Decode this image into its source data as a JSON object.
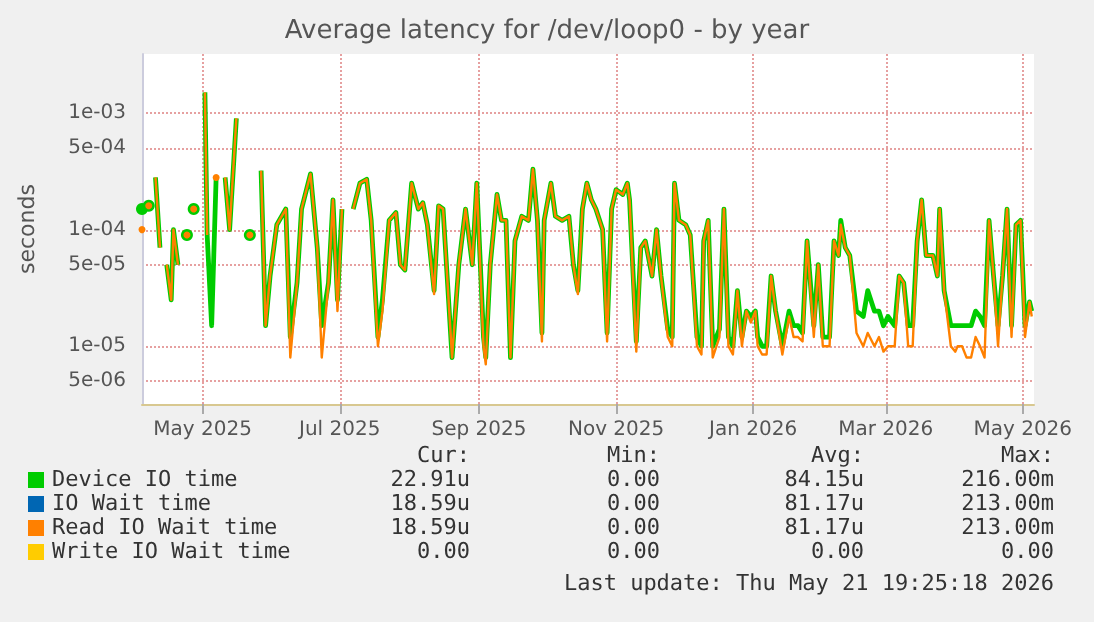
{
  "chart_data": {
    "type": "line",
    "title": "Average latency for /dev/loop0 - by year",
    "ylabel": "seconds",
    "log": "y",
    "grid": true,
    "legend": "bottom",
    "marker": "none",
    "line_style": "solid",
    "xlim": [
      "2025-04-04",
      "2026-05-06"
    ],
    "xticks": [
      {
        "value": "2025-05-01",
        "label": "May 2025"
      },
      {
        "value": "2025-07-01",
        "label": "Jul 2025"
      },
      {
        "value": "2025-09-01",
        "label": "Sep 2025"
      },
      {
        "value": "2025-11-01",
        "label": "Nov 2025"
      },
      {
        "value": "2026-01-01",
        "label": "Jan 2026"
      },
      {
        "value": "2026-03-01",
        "label": "Mar 2026"
      },
      {
        "value": "2026-05-01",
        "label": "May 2026"
      }
    ],
    "ylim": [
      3.2e-06,
      0.0032
    ],
    "yticks": [
      {
        "value": 5e-06,
        "label": "5e-06"
      },
      {
        "value": 1e-05,
        "label": "1e-05"
      },
      {
        "value": 5e-05,
        "label": "5e-05"
      },
      {
        "value": 0.0001,
        "label": "1e-04"
      },
      {
        "value": 0.0005,
        "label": "5e-04"
      },
      {
        "value": 0.001,
        "label": "1e-03"
      }
    ],
    "x": [
      "2025-04-04",
      "2025-04-05",
      "2025-04-07",
      "2025-04-09",
      "2025-04-10",
      "2025-04-12",
      "2025-04-14",
      "2025-04-15",
      "2025-04-17",
      "2025-04-18",
      "2025-04-20",
      "2025-04-21",
      "2025-04-24",
      "2025-04-26",
      "2025-04-27",
      "2025-04-29",
      "2025-05-02",
      "2025-05-03",
      "2025-05-05",
      "2025-05-07",
      "2025-05-10",
      "2025-05-11",
      "2025-05-13",
      "2025-05-16",
      "2025-05-18",
      "2025-05-20",
      "2025-05-22",
      "2025-05-24",
      "2025-05-27",
      "2025-05-29",
      "2025-05-31",
      "2025-06-03",
      "2025-06-07",
      "2025-06-09",
      "2025-06-12",
      "2025-06-14",
      "2025-06-18",
      "2025-06-21",
      "2025-06-23",
      "2025-06-26",
      "2025-06-28",
      "2025-06-30",
      "2025-07-02",
      "2025-07-04",
      "2025-07-07",
      "2025-07-10",
      "2025-07-13",
      "2025-07-15",
      "2025-07-18",
      "2025-07-20",
      "2025-07-23",
      "2025-07-26",
      "2025-07-28",
      "2025-07-30",
      "2025-08-02",
      "2025-08-05",
      "2025-08-07",
      "2025-08-09",
      "2025-08-12",
      "2025-08-14",
      "2025-08-16",
      "2025-08-20",
      "2025-08-23",
      "2025-08-26",
      "2025-08-29",
      "2025-08-31",
      "2025-09-03",
      "2025-09-04",
      "2025-09-06",
      "2025-09-09",
      "2025-09-11",
      "2025-09-13",
      "2025-09-15",
      "2025-09-17",
      "2025-09-20",
      "2025-09-23",
      "2025-09-25",
      "2025-09-27",
      "2025-09-29",
      "2025-09-30",
      "2025-10-03",
      "2025-10-05",
      "2025-10-08",
      "2025-10-11",
      "2025-10-13",
      "2025-10-15",
      "2025-10-17",
      "2025-10-19",
      "2025-10-21",
      "2025-10-23",
      "2025-10-26",
      "2025-10-28",
      "2025-10-30",
      "2025-11-01",
      "2025-11-04",
      "2025-11-06",
      "2025-11-07",
      "2025-11-10",
      "2025-11-12",
      "2025-11-14",
      "2025-11-17",
      "2025-11-19",
      "2025-11-21",
      "2025-11-24",
      "2025-11-26",
      "2025-11-27",
      "2025-11-29",
      "2025-12-02",
      "2025-12-04",
      "2025-12-07",
      "2025-12-09",
      "2025-12-10",
      "2025-12-12",
      "2025-12-14",
      "2025-12-17",
      "2025-12-19",
      "2025-12-21",
      "2025-12-23",
      "2025-12-25",
      "2025-12-27",
      "2025-12-29",
      "2025-12-31",
      "2026-01-02",
      "2026-01-03",
      "2026-01-05",
      "2026-01-07",
      "2026-01-09",
      "2026-01-11",
      "2026-01-14",
      "2026-01-17",
      "2026-01-19",
      "2026-01-21",
      "2026-01-23",
      "2026-01-25",
      "2026-01-28",
      "2026-01-30",
      "2026-02-01",
      "2026-02-04",
      "2026-02-06",
      "2026-02-08",
      "2026-02-09",
      "2026-02-11",
      "2026-02-13",
      "2026-02-16",
      "2026-02-19",
      "2026-02-21",
      "2026-02-24",
      "2026-02-26",
      "2026-02-28",
      "2026-03-02",
      "2026-03-05",
      "2026-03-07",
      "2026-03-09",
      "2026-03-11",
      "2026-03-13",
      "2026-03-15",
      "2026-03-17",
      "2026-03-19",
      "2026-03-22",
      "2026-03-24",
      "2026-03-25",
      "2026-03-27",
      "2026-03-30",
      "2026-04-01",
      "2026-04-02",
      "2026-04-04",
      "2026-04-06",
      "2026-04-08",
      "2026-04-10",
      "2026-04-12",
      "2026-04-14",
      "2026-04-16",
      "2026-04-18",
      "2026-04-20",
      "2026-04-22",
      "2026-04-24",
      "2026-04-26",
      "2026-04-28",
      "2026-04-30",
      "2026-05-02",
      "2026-05-04",
      "2026-05-05"
    ],
    "series": [
      {
        "name": "Device IO time",
        "color": "#00cc00",
        "values": [
          0.00015,
          null,
          0.00016,
          null,
          0.00028,
          7e-05,
          null,
          5e-05,
          2.5e-05,
          0.0001,
          5e-05,
          null,
          9e-05,
          null,
          0.00015,
          null,
          0.0015,
          9e-05,
          1.5e-05,
          0.00028,
          null,
          0.00028,
          0.0001,
          0.0009,
          null,
          null,
          9e-05,
          null,
          0.00032,
          1.5e-05,
          4e-05,
          0.00011,
          0.00015,
          1.2e-05,
          3.5e-05,
          0.00015,
          0.0003,
          7e-05,
          1.5e-05,
          3.5e-05,
          0.00018,
          2.5e-05,
          0.00015,
          null,
          0.00015,
          0.00025,
          0.00027,
          0.00012,
          1.2e-05,
          2.5e-05,
          0.00012,
          0.00014,
          5e-05,
          4.5e-05,
          0.00025,
          0.00015,
          0.00017,
          0.00011,
          3e-05,
          0.00016,
          0.00015,
          8e-06,
          5e-05,
          0.00015,
          5e-05,
          0.00025,
          1.2e-05,
          8e-06,
          5e-05,
          0.0002,
          0.00012,
          0.00012,
          8e-06,
          8e-05,
          0.00013,
          0.00012,
          0.00033,
          0.00012,
          1.3e-05,
          0.00012,
          0.00025,
          0.00013,
          0.00012,
          0.00013,
          5e-05,
          3e-05,
          0.00015,
          0.00025,
          0.00018,
          0.00015,
          0.0001,
          1.3e-05,
          0.00015,
          0.00022,
          0.0002,
          0.00025,
          0.00018,
          1.1e-05,
          7e-05,
          8e-05,
          4e-05,
          0.0001,
          4e-05,
          1.4e-05,
          1.2e-05,
          0.00025,
          0.00012,
          0.00011,
          9e-05,
          1.2e-05,
          1e-05,
          8e-05,
          0.00012,
          1e-05,
          1.4e-05,
          0.00015,
          1.2e-05,
          1e-05,
          3e-05,
          1.2e-05,
          2e-05,
          1.8e-05,
          2e-05,
          1.2e-05,
          1e-05,
          1e-05,
          4e-05,
          2e-05,
          1e-05,
          2e-05,
          1.5e-05,
          1.5e-05,
          1.3e-05,
          8e-05,
          1.5e-05,
          5e-05,
          1.2e-05,
          1.2e-05,
          8e-05,
          6e-05,
          0.00012,
          7e-05,
          6e-05,
          2e-05,
          1.8e-05,
          3e-05,
          2e-05,
          2e-05,
          1.5e-05,
          1.8e-05,
          1.5e-05,
          4e-05,
          3.5e-05,
          1.5e-05,
          1.5e-05,
          8e-05,
          0.00018,
          6e-05,
          6e-05,
          4e-05,
          0.00015,
          3e-05,
          1.5e-05,
          1.5e-05,
          1.5e-05,
          1.5e-05,
          1.5e-05,
          1.5e-05,
          2e-05,
          1.8e-05,
          1.5e-05,
          0.00012,
          4e-05,
          1.5e-05,
          4e-05,
          0.00015,
          1.5e-05,
          0.00011,
          0.00012,
          1.5e-05,
          2.4e-05,
          2e-05
        ]
      },
      {
        "name": "IO Wait time",
        "color": "#0066b3",
        "values": [
          null,
          null,
          null,
          null,
          null,
          null,
          null,
          null,
          null,
          null,
          null,
          null,
          null,
          null,
          null,
          null,
          null,
          null,
          null,
          null,
          null,
          null,
          null,
          null,
          null,
          null,
          null,
          null,
          null,
          null,
          null,
          null,
          null,
          null,
          null,
          null,
          null,
          null,
          null,
          null,
          null,
          null,
          null,
          null,
          null,
          null,
          null,
          null,
          null,
          null,
          null,
          null,
          null,
          null,
          null,
          null,
          null,
          null,
          null,
          null,
          null,
          null,
          null,
          null,
          null,
          null,
          null,
          null,
          null,
          null,
          null,
          null,
          null,
          null,
          null,
          null,
          null,
          null,
          null,
          null,
          null,
          null,
          null,
          null,
          null,
          null,
          null,
          null,
          null,
          null,
          null,
          null,
          null,
          null,
          null,
          null,
          null,
          null,
          null,
          null,
          null,
          null,
          null,
          null,
          null,
          null,
          null,
          null,
          null,
          null,
          null,
          null,
          null,
          null,
          null,
          null,
          null,
          null,
          null,
          null,
          null,
          null,
          null,
          null,
          null,
          null,
          null,
          null,
          null,
          null,
          null,
          null,
          null,
          null,
          null,
          null,
          null,
          null,
          null,
          null,
          null,
          null,
          null,
          null,
          null,
          null,
          null,
          null,
          null,
          null,
          null,
          null,
          null,
          null,
          null,
          null,
          null,
          null,
          null,
          null,
          null,
          null,
          null,
          null,
          null,
          null,
          null,
          null,
          null,
          null,
          null,
          null,
          null,
          null,
          null,
          null,
          null,
          null,
          null,
          null,
          null,
          null
        ]
      },
      {
        "name": "Read IO Wait time",
        "color": "#ff8000",
        "values": [
          0.0001,
          null,
          0.00016,
          null,
          0.00028,
          7e-05,
          null,
          5e-05,
          2.5e-05,
          0.0001,
          5e-05,
          null,
          9e-05,
          null,
          0.00015,
          null,
          0.0015,
          9e-05,
          null,
          0.00028,
          null,
          0.00028,
          0.0001,
          0.0009,
          null,
          null,
          9e-05,
          null,
          0.00032,
          1.5e-05,
          4e-05,
          0.00011,
          0.00015,
          8e-06,
          3.5e-05,
          0.00015,
          0.0003,
          7e-05,
          8e-06,
          3.5e-05,
          0.00018,
          2e-05,
          0.00015,
          null,
          0.00015,
          0.00025,
          0.00027,
          0.00012,
          1e-05,
          2e-05,
          0.00012,
          0.00014,
          5e-05,
          4.5e-05,
          0.00025,
          0.00015,
          0.00017,
          0.00011,
          2.8e-05,
          0.00016,
          0.00015,
          8e-06,
          5e-05,
          0.00015,
          5e-05,
          0.00025,
          1e-05,
          7e-06,
          5e-05,
          0.0002,
          0.00012,
          0.00012,
          8e-06,
          8e-05,
          0.00013,
          0.00012,
          0.00033,
          0.00012,
          1.1e-05,
          0.00012,
          0.00025,
          0.00013,
          0.00012,
          0.00013,
          5e-05,
          2.8e-05,
          0.00015,
          0.00025,
          0.00018,
          0.00015,
          0.0001,
          1.1e-05,
          0.00015,
          0.00022,
          0.0002,
          0.00025,
          0.00018,
          9e-06,
          7e-05,
          8e-05,
          4e-05,
          0.0001,
          4e-05,
          1.2e-05,
          1e-05,
          0.00025,
          0.00012,
          0.00011,
          9e-05,
          1e-05,
          8.5e-06,
          8e-05,
          0.00012,
          8e-06,
          1.2e-05,
          0.00015,
          1e-05,
          8.5e-06,
          3e-05,
          1e-05,
          2e-05,
          1.6e-05,
          2e-05,
          1e-05,
          8.5e-06,
          8.5e-06,
          4e-05,
          2e-05,
          8.5e-06,
          1.8e-05,
          1.2e-05,
          1.2e-05,
          1.1e-05,
          8e-05,
          1.2e-05,
          5e-05,
          1e-05,
          1e-05,
          8e-05,
          6e-05,
          0.00011,
          7e-05,
          6e-05,
          1.3e-05,
          1e-05,
          1.3e-05,
          1e-05,
          1.2e-05,
          9e-06,
          1e-05,
          1e-05,
          4e-05,
          3.5e-05,
          1e-05,
          1e-05,
          8e-05,
          0.00018,
          6e-05,
          6e-05,
          4e-05,
          0.00015,
          3e-05,
          1e-05,
          9e-06,
          1e-05,
          1e-05,
          8e-06,
          8e-06,
          1.2e-05,
          1e-05,
          8e-06,
          0.00012,
          4e-05,
          1e-05,
          4e-05,
          0.00015,
          1.2e-05,
          0.00011,
          0.00012,
          1.2e-05,
          2.4e-05,
          1.8e-05
        ]
      },
      {
        "name": "Write IO Wait time",
        "color": "#ffcc00",
        "values": [
          null,
          null,
          null,
          null,
          null,
          null,
          null,
          null,
          null,
          null,
          null,
          null,
          null,
          null,
          null,
          null,
          null,
          null,
          null,
          null,
          null,
          null,
          null,
          null,
          null,
          null,
          null,
          null,
          null,
          null,
          null,
          null,
          null,
          null,
          null,
          null,
          null,
          null,
          null,
          null,
          null,
          null,
          null,
          null,
          null,
          null,
          null,
          null,
          null,
          null,
          null,
          null,
          null,
          null,
          null,
          null,
          null,
          null,
          null,
          null,
          null,
          null,
          null,
          null,
          null,
          null,
          null,
          null,
          null,
          null,
          null,
          null,
          null,
          null,
          null,
          null,
          null,
          null,
          null,
          null,
          null,
          null,
          null,
          null,
          null,
          null,
          null,
          null,
          null,
          null,
          null,
          null,
          null,
          null,
          null,
          null,
          null,
          null,
          null,
          null,
          null,
          null,
          null,
          null,
          null,
          null,
          null,
          null,
          null,
          null,
          null,
          null,
          null,
          null,
          null,
          null,
          null,
          null,
          null,
          null,
          null,
          null,
          null,
          null,
          null,
          null,
          null,
          null,
          null,
          null,
          null,
          null,
          null,
          null,
          null,
          null,
          null,
          null,
          null,
          null,
          null,
          null,
          null,
          null,
          null,
          null,
          null,
          null,
          null,
          null,
          null,
          null,
          null,
          null,
          null,
          null,
          null,
          null,
          null,
          null,
          null,
          null,
          null,
          null,
          null,
          null,
          null,
          null,
          null,
          null,
          null,
          null,
          null,
          null,
          null,
          null,
          null,
          null,
          null,
          null,
          null,
          null
        ]
      }
    ],
    "annotations": [
      "Cur:",
      "Min:",
      "Avg:",
      "Max:",
      "22.91u",
      "0.00",
      "84.15u",
      "216.00m",
      "18.59u",
      "0.00",
      "81.17u",
      "213.00m",
      "18.59u",
      "0.00",
      "81.17u",
      "213.00m",
      "0.00",
      "0.00",
      "0.00",
      "0.00",
      "Last update: Thu May 21 19:25:18 2026"
    ]
  }
}
